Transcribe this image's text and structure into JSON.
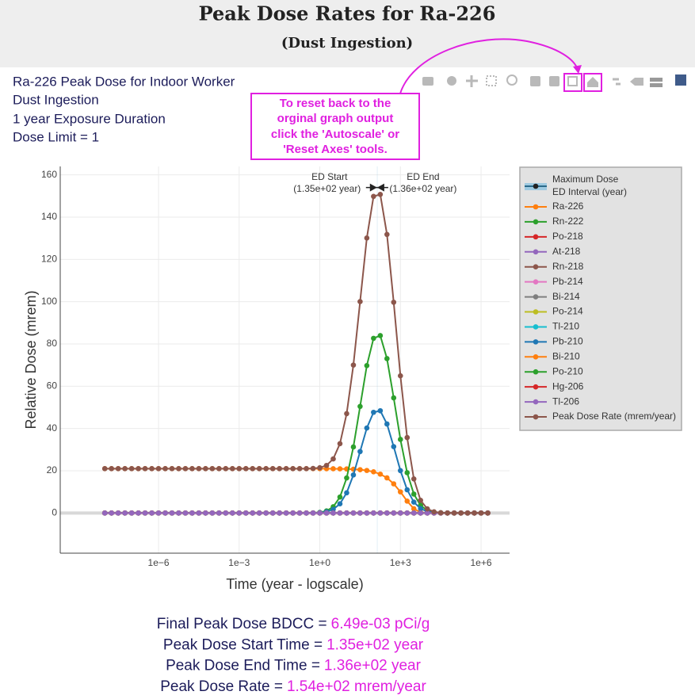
{
  "header": {
    "title": "Peak Dose Rates for Ra-226",
    "subtitle": "(Dust Ingestion)"
  },
  "info": [
    "Ra-226 Peak Dose for Indoor Worker",
    "Dust Ingestion",
    "1 year Exposure Duration",
    "Dose Limit = 1"
  ],
  "callout": [
    "To reset back to the",
    "orginal graph output",
    "click the 'Autoscale' or",
    "'Reset Axes' tools."
  ],
  "chart_data": {
    "type": "line",
    "x_label": "Time (year - logscale)",
    "y_label": "Relative Dose (mrem)",
    "xscale": "log",
    "xlim": [
      2.2e-10,
      11500000.0
    ],
    "ylim": [
      -19,
      164
    ],
    "xticks": [
      {
        "value": 1e-06,
        "label": "1e−6"
      },
      {
        "value": 0.001,
        "label": "1e−3"
      },
      {
        "value": 1,
        "label": "1e+0"
      },
      {
        "value": 1000,
        "label": "1e+3"
      },
      {
        "value": 1000000,
        "label": "1e+6"
      }
    ],
    "yticks": [
      0,
      20,
      40,
      60,
      80,
      100,
      120,
      140,
      160
    ],
    "grid": true,
    "legend": "right",
    "x": [
      1e-08,
      1.78e-08,
      3.16e-08,
      5.62e-08,
      1e-07,
      1.78e-07,
      3.16e-07,
      5.62e-07,
      1e-06,
      1.78e-06,
      3.16e-06,
      5.62e-06,
      1e-05,
      1.78e-05,
      3.16e-05,
      5.62e-05,
      0.0001,
      0.000178,
      0.000316,
      0.000562,
      0.001,
      0.00178,
      0.00316,
      0.00562,
      0.01,
      0.0178,
      0.0316,
      0.0562,
      0.1,
      0.178,
      0.316,
      0.562,
      1,
      1.78,
      3.16,
      5.62,
      10,
      17.8,
      31.6,
      56.2,
      100,
      178,
      316,
      562,
      1000,
      1780,
      3160,
      5620,
      10000,
      17800,
      31600,
      56200,
      100000,
      178000,
      316000,
      562000,
      1000000,
      1780000
    ],
    "ed_interval": {
      "name": [
        "Maximum Dose",
        "ED Interval (year)"
      ],
      "start": 135,
      "end": 136,
      "value": 154,
      "color": "#222222",
      "band_color": "#9ecae1",
      "start_label": [
        "ED Start",
        "(1.35e+02 year)"
      ],
      "end_label": [
        "ED End",
        "(1.36e+02 year)"
      ]
    },
    "series": [
      {
        "name": "Ra-226",
        "color": "#ff7f0e",
        "values": [
          21,
          21,
          21,
          21,
          21,
          21,
          21,
          21,
          21,
          21,
          21,
          21,
          21,
          21,
          21,
          21,
          21,
          21,
          21,
          21,
          21,
          21,
          21,
          21,
          21,
          21,
          21,
          21,
          21,
          21,
          21,
          21,
          21,
          20.97,
          20.95,
          20.91,
          20.85,
          20.72,
          20.51,
          20.14,
          19.5,
          18.41,
          16.63,
          13.81,
          10.02,
          5.63,
          2.02,
          0.33,
          0.01,
          0,
          0,
          0,
          0,
          0,
          0,
          0,
          0,
          0
        ]
      },
      {
        "name": "Rn-222",
        "color": "#2ca02c",
        "values": [
          0,
          0,
          0,
          0,
          0,
          0,
          0,
          0,
          0,
          0,
          0,
          0,
          0,
          0,
          0,
          0,
          0,
          0,
          0,
          0,
          0,
          0,
          0,
          0,
          0,
          0,
          0,
          0,
          0,
          0,
          0.01,
          0.07,
          0.28,
          0.99,
          2.95,
          7.56,
          16.61,
          31.27,
          50.45,
          69.77,
          82.67,
          83.95,
          73.07,
          54.5,
          34.83,
          19.08,
          8.96,
          3.6,
          1.24,
          0.37,
          0.09,
          0.02,
          0,
          0,
          0,
          0,
          0,
          0
        ]
      },
      {
        "name": "Po-218",
        "color": "#d62728",
        "values": [
          0,
          0,
          0,
          0,
          0,
          0,
          0,
          0,
          0,
          0,
          0,
          0,
          0,
          0,
          0,
          0,
          0,
          0,
          0,
          0,
          0,
          0,
          0,
          0,
          0,
          0,
          0,
          0,
          0,
          0,
          0,
          0,
          0,
          0,
          0,
          0,
          0,
          0,
          0,
          0,
          0,
          0,
          0,
          0,
          0,
          0,
          0,
          0,
          0,
          0,
          0,
          0,
          0,
          0,
          0,
          0,
          0,
          0
        ]
      },
      {
        "name": "At-218",
        "color": "#9467bd",
        "values": [
          0,
          0,
          0,
          0,
          0,
          0,
          0,
          0,
          0,
          0,
          0,
          0,
          0,
          0,
          0,
          0,
          0,
          0,
          0,
          0,
          0,
          0,
          0,
          0,
          0,
          0,
          0,
          0,
          0,
          0,
          0,
          0,
          0,
          0,
          0,
          0,
          0,
          0,
          0,
          0,
          0,
          0,
          0,
          0,
          0,
          0,
          0,
          0,
          0,
          0,
          0,
          0,
          0,
          0,
          0,
          0,
          0,
          0
        ]
      },
      {
        "name": "Rn-218",
        "color": "#8c564b",
        "values": [
          0,
          0,
          0,
          0,
          0,
          0,
          0,
          0,
          0,
          0,
          0,
          0,
          0,
          0,
          0,
          0,
          0,
          0,
          0,
          0,
          0,
          0,
          0,
          0,
          0,
          0,
          0,
          0,
          0,
          0,
          0,
          0,
          0,
          0,
          0,
          0,
          0,
          0,
          0,
          0,
          0,
          0,
          0,
          0,
          0,
          0,
          0,
          0,
          0,
          0,
          0,
          0,
          0,
          0,
          0,
          0,
          0,
          0
        ]
      },
      {
        "name": "Pb-214",
        "color": "#e377c2",
        "values": [
          0,
          0,
          0,
          0,
          0,
          0,
          0,
          0,
          0,
          0,
          0,
          0,
          0,
          0,
          0,
          0,
          0,
          0,
          0,
          0,
          0,
          0,
          0,
          0,
          0,
          0,
          0,
          0,
          0,
          0,
          0,
          0,
          0,
          0,
          0,
          0,
          0,
          0,
          0,
          0,
          0,
          0,
          0,
          0,
          0,
          0,
          0,
          0,
          0,
          0,
          0,
          0,
          0,
          0,
          0,
          0,
          0,
          0
        ]
      },
      {
        "name": "Bi-214",
        "color": "#7f7f7f",
        "values": [
          0,
          0,
          0,
          0,
          0,
          0,
          0,
          0,
          0,
          0,
          0,
          0,
          0,
          0,
          0,
          0,
          0,
          0,
          0,
          0,
          0,
          0,
          0,
          0,
          0,
          0,
          0,
          0,
          0,
          0,
          0,
          0,
          0,
          0,
          0,
          0,
          0,
          0,
          0,
          0,
          0,
          0,
          0,
          0,
          0,
          0,
          0,
          0,
          0,
          0,
          0,
          0,
          0,
          0,
          0,
          0,
          0,
          0
        ]
      },
      {
        "name": "Po-214",
        "color": "#bcbd22",
        "values": [
          0,
          0,
          0,
          0,
          0,
          0,
          0,
          0,
          0,
          0,
          0,
          0,
          0,
          0,
          0,
          0,
          0,
          0,
          0,
          0,
          0,
          0,
          0,
          0,
          0,
          0,
          0,
          0,
          0,
          0,
          0,
          0,
          0,
          0,
          0,
          0,
          0,
          0,
          0,
          0,
          0,
          0,
          0,
          0,
          0,
          0,
          0,
          0,
          0,
          0,
          0,
          0,
          0,
          0,
          0,
          0,
          0,
          0
        ]
      },
      {
        "name": "Tl-210",
        "color": "#17becf",
        "values": [
          0,
          0,
          0,
          0,
          0,
          0,
          0,
          0,
          0,
          0,
          0,
          0,
          0,
          0,
          0,
          0,
          0,
          0,
          0,
          0,
          0,
          0,
          0,
          0,
          0,
          0,
          0,
          0,
          0,
          0,
          0,
          0,
          0,
          0,
          0,
          0,
          0,
          0,
          0,
          0,
          0,
          0,
          0,
          0,
          0,
          0,
          0,
          0,
          0,
          0,
          0,
          0,
          0,
          0,
          0,
          0,
          0,
          0
        ]
      },
      {
        "name": "Pb-210",
        "color": "#1f77b4",
        "values": [
          0,
          0,
          0,
          0,
          0,
          0,
          0,
          0,
          0,
          0,
          0,
          0,
          0,
          0,
          0,
          0,
          0,
          0,
          0,
          0,
          0,
          0,
          0,
          0,
          0,
          0,
          0,
          0,
          0,
          0,
          0.01,
          0.04,
          0.16,
          0.57,
          1.7,
          4.36,
          9.57,
          18.03,
          29.09,
          40.22,
          47.66,
          48.4,
          42.13,
          31.42,
          20.08,
          11,
          5.16,
          2.08,
          0.72,
          0.21,
          0.05,
          0.01,
          0,
          0,
          0,
          0,
          0,
          0
        ]
      },
      {
        "name": "Bi-210",
        "color": "#ff7f0e",
        "values": [
          0,
          0,
          0,
          0,
          0,
          0,
          0,
          0,
          0,
          0,
          0,
          0,
          0,
          0,
          0,
          0,
          0,
          0,
          0,
          0,
          0,
          0,
          0,
          0,
          0,
          0,
          0,
          0,
          0,
          0,
          0,
          0,
          0,
          0,
          0,
          0,
          0,
          0,
          0,
          0,
          0,
          0,
          0,
          0,
          0,
          0,
          0,
          0,
          0,
          0,
          0,
          0,
          0,
          0,
          0,
          0,
          0,
          0
        ]
      },
      {
        "name": "Po-210",
        "color": "#2ca02c",
        "values": [
          0,
          0,
          0,
          0,
          0,
          0,
          0,
          0,
          0,
          0,
          0,
          0,
          0,
          0,
          0,
          0,
          0,
          0,
          0,
          0,
          0,
          0,
          0,
          0,
          0,
          0,
          0,
          0,
          0,
          0,
          0,
          0,
          0,
          0,
          0,
          0,
          0,
          0,
          0,
          0,
          0,
          0,
          0,
          0,
          0,
          0,
          0,
          0,
          0,
          0,
          0,
          0,
          0,
          0,
          0,
          0,
          0,
          0
        ]
      },
      {
        "name": "Hg-206",
        "color": "#d62728",
        "values": [
          0,
          0,
          0,
          0,
          0,
          0,
          0,
          0,
          0,
          0,
          0,
          0,
          0,
          0,
          0,
          0,
          0,
          0,
          0,
          0,
          0,
          0,
          0,
          0,
          0,
          0,
          0,
          0,
          0,
          0,
          0,
          0,
          0,
          0,
          0,
          0,
          0,
          0,
          0,
          0,
          0,
          0,
          0,
          0,
          0,
          0,
          0,
          0,
          0,
          0,
          0,
          0,
          0,
          0,
          0,
          0,
          0,
          0
        ]
      },
      {
        "name": "Tl-206",
        "color": "#9467bd",
        "values": [
          0,
          0,
          0,
          0,
          0,
          0,
          0,
          0,
          0,
          0,
          0,
          0,
          0,
          0,
          0,
          0,
          0,
          0,
          0,
          0,
          0,
          0,
          0,
          0,
          0,
          0,
          0,
          0,
          0,
          0,
          0,
          0,
          0,
          0,
          0,
          0,
          0,
          0,
          0,
          0,
          0,
          0,
          0,
          0,
          0,
          0,
          0,
          0,
          0,
          0,
          0,
          0,
          0,
          0,
          0,
          0,
          0,
          0
        ]
      },
      {
        "name": "Peak Dose Rate (mrem/year)",
        "color": "#8c564b",
        "values": [
          21,
          21,
          21,
          21,
          21,
          21,
          21,
          21,
          21,
          21,
          21,
          21,
          21,
          21,
          21,
          21,
          21,
          21,
          21,
          21,
          21,
          21,
          21,
          21,
          21,
          21,
          21,
          21,
          21,
          21,
          21.02,
          21.11,
          21.44,
          22.53,
          25.6,
          32.83,
          47.03,
          70.02,
          100.05,
          130.13,
          149.83,
          150.76,
          131.83,
          99.73,
          64.93,
          35.71,
          16.14,
          6.01,
          1.97,
          0.58,
          0.14,
          0.03,
          0,
          0,
          0,
          0,
          0,
          0
        ]
      }
    ]
  },
  "results": [
    {
      "label": "Final Peak Dose BDCC =",
      "value": "6.49e-03 pCi/g"
    },
    {
      "label": "Peak Dose Start Time =",
      "value": "1.35e+02 year"
    },
    {
      "label": "Peak Dose End Time =",
      "value": "1.36e+02 year"
    },
    {
      "label": "Peak Dose Rate =",
      "value": "1.54e+02 mrem/year"
    }
  ]
}
